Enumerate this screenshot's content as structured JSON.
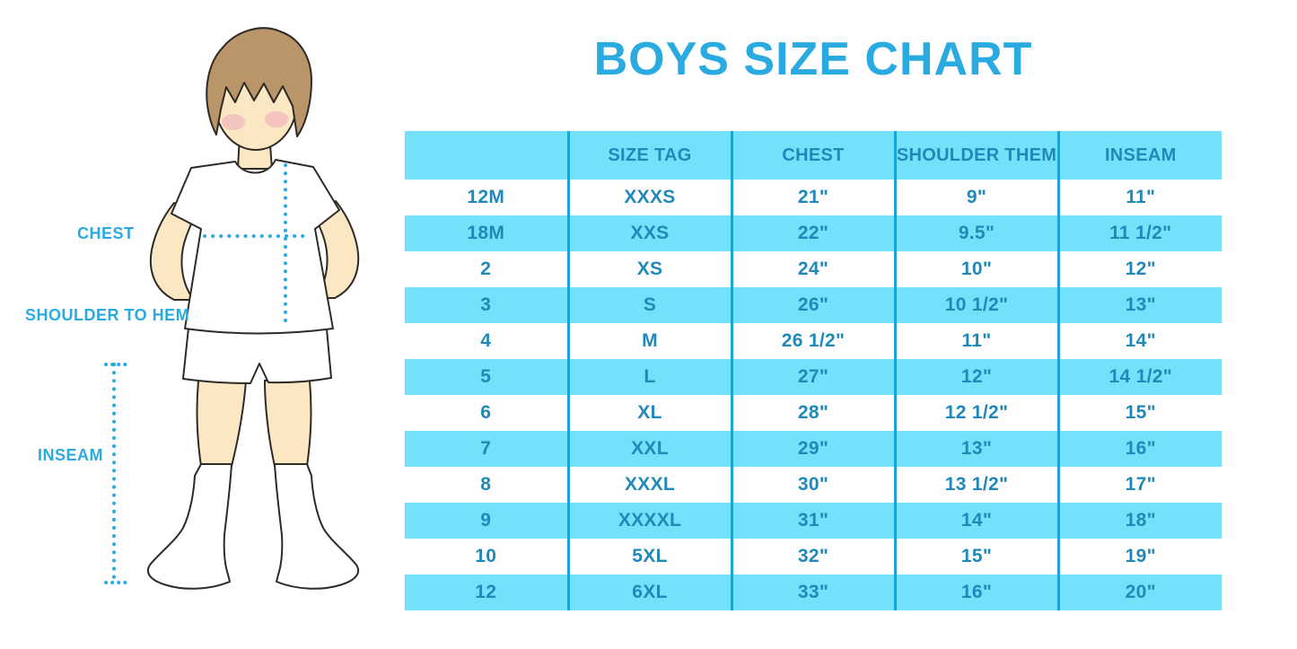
{
  "title": "BOYS SIZE CHART",
  "figure": {
    "chest_label": "CHEST",
    "shoulder_to_hem_label": "SHOULDER TO HEM",
    "inseam_label": "INSEAM"
  },
  "chart_data": {
    "type": "table",
    "title": "BOYS SIZE CHART",
    "columns": [
      "",
      "SIZE TAG",
      "CHEST",
      "SHOULDER THEM",
      "INSEAM"
    ],
    "rows": [
      [
        "12M",
        "XXXS",
        "21\"",
        "9\"",
        "11\""
      ],
      [
        "18M",
        "XXS",
        "22\"",
        "9.5\"",
        "11 1/2\""
      ],
      [
        "2",
        "XS",
        "24\"",
        "10\"",
        "12\""
      ],
      [
        "3",
        "S",
        "26\"",
        "10 1/2\"",
        "13\""
      ],
      [
        "4",
        "M",
        "26 1/2\"",
        "11\"",
        "14\""
      ],
      [
        "5",
        "L",
        "27\"",
        "12\"",
        "14 1/2\""
      ],
      [
        "6",
        "XL",
        "28\"",
        "12 1/2\"",
        "15\""
      ],
      [
        "7",
        "XXL",
        "29\"",
        "13\"",
        "16\""
      ],
      [
        "8",
        "XXXL",
        "30\"",
        "13 1/2\"",
        "17\""
      ],
      [
        "9",
        "XXXXL",
        "31\"",
        "14\"",
        "18\""
      ],
      [
        "10",
        "5XL",
        "32\"",
        "15\"",
        "19\""
      ],
      [
        "12",
        "6XL",
        "33\"",
        "16\"",
        "20\""
      ]
    ],
    "layout": {
      "striped_rows": "even rows cyan, odd rows white",
      "grid": "vertical dividers only, no outer border"
    }
  },
  "colors": {
    "accent_blue": "#29ABE2",
    "row_cyan": "#72E2FB",
    "divider_blue": "#1BA3D6",
    "table_text_blue": "#2188B8"
  }
}
